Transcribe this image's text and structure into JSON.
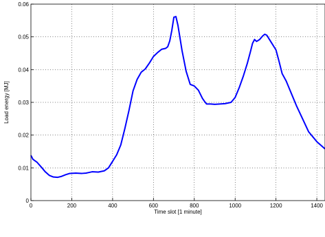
{
  "chart_data": {
    "type": "line",
    "title": "",
    "xlabel": "Time slot [1 minute]",
    "ylabel": "Load energy [MJ]",
    "xlim": [
      0,
      1440
    ],
    "ylim": [
      0,
      0.06
    ],
    "xticks": [
      0,
      200,
      400,
      600,
      800,
      1000,
      1200,
      1400
    ],
    "yticks": [
      0,
      0.01,
      0.02,
      0.03,
      0.04,
      0.05,
      0.06
    ],
    "xtick_labels": [
      "0",
      "200",
      "400",
      "600",
      "800",
      "1000",
      "1200",
      "1400"
    ],
    "ytick_labels": [
      "0",
      "0.01",
      "0.02",
      "0.03",
      "0.04",
      "0.05",
      "0.06"
    ],
    "grid": true,
    "line_color": "#0000ff",
    "series": [
      {
        "x": [
          0,
          10,
          30,
          50,
          70,
          90,
          110,
          130,
          150,
          170,
          190,
          220,
          250,
          270,
          300,
          330,
          360,
          380,
          400,
          420,
          440,
          460,
          480,
          500,
          520,
          540,
          560,
          580,
          600,
          620,
          640,
          660,
          670,
          680,
          690,
          700,
          710,
          720,
          740,
          760,
          780,
          800,
          820,
          840,
          850,
          860,
          880,
          900,
          950,
          980,
          1000,
          1020,
          1040,
          1060,
          1075,
          1085,
          1095,
          1105,
          1120,
          1135,
          1145,
          1155,
          1165,
          1180,
          1200,
          1215,
          1230,
          1250,
          1270,
          1300,
          1330,
          1360,
          1400,
          1440
        ],
        "y": [
          0.0138,
          0.0126,
          0.0117,
          0.0103,
          0.0088,
          0.0077,
          0.0072,
          0.0071,
          0.0074,
          0.0079,
          0.0083,
          0.0084,
          0.0083,
          0.0084,
          0.0088,
          0.0087,
          0.0091,
          0.01,
          0.012,
          0.014,
          0.017,
          0.022,
          0.0275,
          0.0335,
          0.037,
          0.0392,
          0.0402,
          0.042,
          0.044,
          0.0452,
          0.0462,
          0.0465,
          0.047,
          0.0488,
          0.052,
          0.056,
          0.0562,
          0.0535,
          0.0458,
          0.0395,
          0.0355,
          0.035,
          0.0337,
          0.0312,
          0.0303,
          0.0295,
          0.0295,
          0.0294,
          0.0296,
          0.03,
          0.0315,
          0.0345,
          0.038,
          0.042,
          0.0455,
          0.048,
          0.0492,
          0.0486,
          0.0492,
          0.0503,
          0.0508,
          0.0505,
          0.0495,
          0.048,
          0.046,
          0.0425,
          0.0388,
          0.0365,
          0.0335,
          0.029,
          0.025,
          0.021,
          0.018,
          0.0158
        ]
      }
    ]
  }
}
